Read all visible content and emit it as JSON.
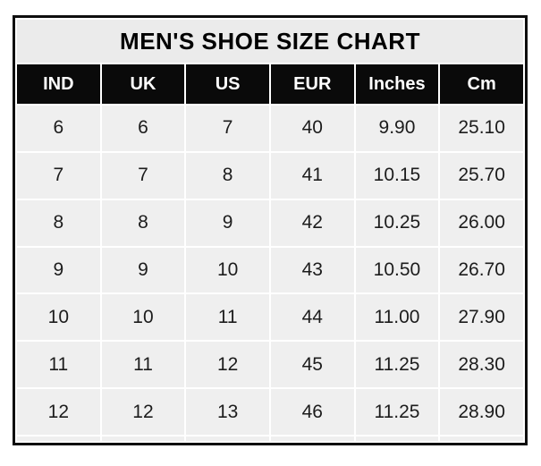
{
  "chart_data": {
    "type": "table",
    "title": "MEN'S SHOE SIZE CHART",
    "columns": [
      "IND",
      "UK",
      "US",
      "EUR",
      "Inches",
      "Cm"
    ],
    "rows": [
      [
        "6",
        "6",
        "7",
        "40",
        "9.90",
        "25.10"
      ],
      [
        "7",
        "7",
        "8",
        "41",
        "10.15",
        "25.70"
      ],
      [
        "8",
        "8",
        "9",
        "42",
        "10.25",
        "26.00"
      ],
      [
        "9",
        "9",
        "10",
        "43",
        "10.50",
        "26.70"
      ],
      [
        "10",
        "10",
        "11",
        "44",
        "11.00",
        "27.90"
      ],
      [
        "11",
        "11",
        "12",
        "45",
        "11.25",
        "28.30"
      ],
      [
        "12",
        "12",
        "13",
        "46",
        "11.25",
        "28.90"
      ]
    ],
    "layout": {
      "legend": "none",
      "grid": "white cell separators on gray cells"
    }
  },
  "colors": {
    "page_background": "#ffffff",
    "outer_border": "#0e0e0e",
    "title_background": "#ebebeb",
    "header_background": "#0a0a0a",
    "header_text": "#ffffff",
    "cell_background": "#efefef",
    "cell_text": "#1c1c1c"
  }
}
